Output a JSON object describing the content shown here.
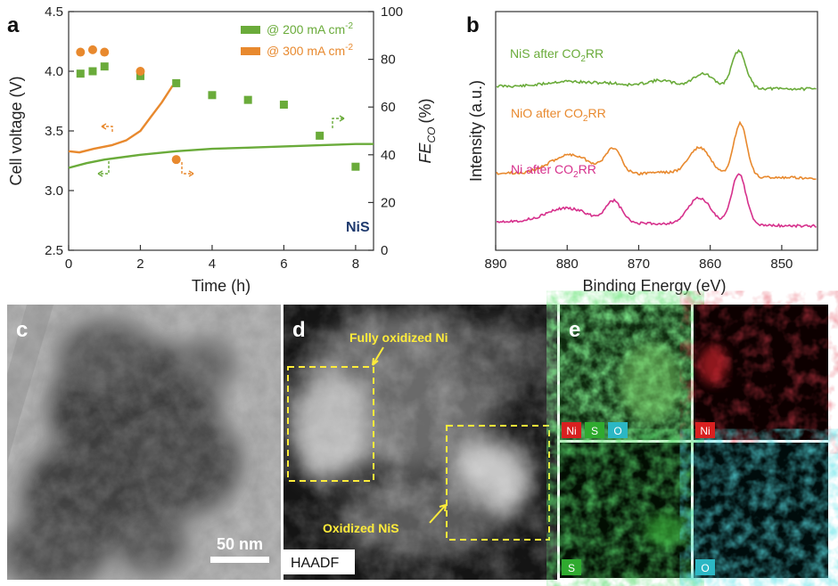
{
  "panels": {
    "a": "a",
    "b": "b",
    "c": "c",
    "d": "d",
    "e": "e"
  },
  "chart_data": [
    {
      "panel": "a",
      "type": "line+scatter",
      "xlabel": "Time (h)",
      "ylabel_left": "Cell voltage (V)",
      "ylabel_right_base": "FE",
      "ylabel_right_sub": "CO",
      "ylabel_right_unit": "(%)",
      "xlim": [
        0,
        8.5
      ],
      "ylim_left": [
        2.5,
        4.5
      ],
      "ylim_right": [
        0,
        100
      ],
      "xticks": [
        "0",
        "2",
        "4",
        "6",
        "8"
      ],
      "yticks_left": [
        "2.5",
        "3.0",
        "3.5",
        "4.0",
        "4.5"
      ],
      "yticks_right": [
        "0",
        "20",
        "40",
        "60",
        "80",
        "100"
      ],
      "annotation": "NiS",
      "series": [
        {
          "legend_prefix": "@ 200 mA cm",
          "legend_sup": "-2",
          "color": "#6aab3a",
          "line_voltage": {
            "x": [
              0,
              0.5,
              1,
              2,
              3,
              4,
              5,
              6,
              7,
              8,
              8.5
            ],
            "y": [
              3.19,
              3.23,
              3.26,
              3.3,
              3.33,
              3.35,
              3.36,
              3.37,
              3.38,
              3.39,
              3.39
            ]
          },
          "scatter_fe": {
            "x": [
              0.33,
              0.67,
              1,
              2,
              3,
              4,
              5,
              6,
              7,
              8
            ],
            "y": [
              74,
              75,
              77,
              73,
              70,
              65,
              63,
              61,
              48,
              35
            ]
          }
        },
        {
          "legend_prefix": "@ 300 mA cm",
          "legend_sup": "-2",
          "color": "#e8892e",
          "line_voltage": {
            "x": [
              0,
              0.3,
              0.7,
              1.2,
              1.6,
              2.0,
              2.3,
              2.6,
              2.9
            ],
            "y": [
              3.33,
              3.32,
              3.35,
              3.38,
              3.42,
              3.5,
              3.62,
              3.74,
              3.88
            ]
          },
          "scatter_fe": {
            "x": [
              0.33,
              0.67,
              1,
              2,
              3
            ],
            "y": [
              83,
              84,
              83,
              75,
              38
            ]
          }
        }
      ]
    },
    {
      "panel": "b",
      "type": "line",
      "xlabel": "Binding Energy (eV)",
      "ylabel": "Intensity (a.u.)",
      "xlim": [
        890,
        845
      ],
      "xticks": [
        "890",
        "880",
        "870",
        "860",
        "850"
      ],
      "series": [
        {
          "name_prefix": "NiS after CO",
          "name_sub": "2",
          "name_suffix": "RR",
          "color": "#6aab3a"
        },
        {
          "name_prefix": "NiO after CO",
          "name_sub": "2",
          "name_suffix": "RR",
          "color": "#e8892e"
        },
        {
          "name_prefix": "Ni after CO",
          "name_sub": "2",
          "name_suffix": "RR",
          "color": "#d6308c"
        }
      ]
    }
  ],
  "images": {
    "c": {
      "scalebar": "50 nm"
    },
    "d": {
      "mode": "HAADF",
      "label_top": "Fully oxidized Ni",
      "label_bottom": "Oxidized NiS"
    },
    "e": {
      "chips": {
        "ni": "Ni",
        "s": "S",
        "o": "O"
      }
    }
  },
  "colors": {
    "green": "#6aab3a",
    "orange": "#e8892e",
    "magenta": "#d6308c",
    "navy": "#1f3a6e",
    "yellow": "#ffec3a"
  }
}
